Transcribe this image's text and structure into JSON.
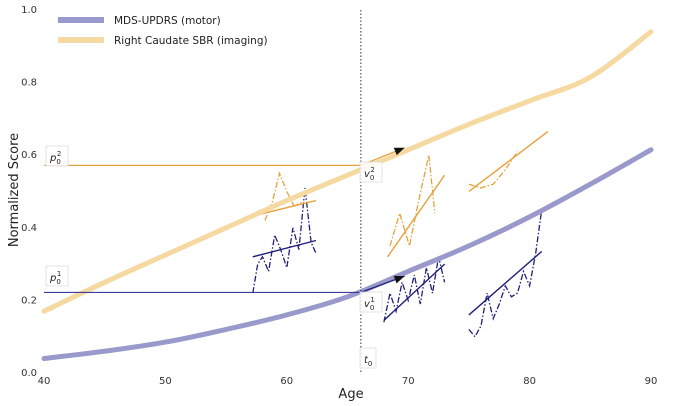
{
  "chart_data": {
    "type": "line",
    "xlabel": "Age",
    "ylabel": "Normalized Score",
    "xlim": [
      40,
      90
    ],
    "ylim": [
      0.0,
      1.0
    ],
    "xticks": [
      "40",
      "50",
      "60",
      "70",
      "80",
      "90"
    ],
    "yticks": [
      "0.0",
      "0.2",
      "0.4",
      "0.6",
      "0.8",
      "1.0"
    ],
    "grid": false,
    "legend_position": "top-left",
    "series": [
      {
        "name": "MDS-UPDRS (motor)",
        "color": "#9999cc",
        "x": [
          40,
          45,
          50,
          55,
          60,
          65,
          70,
          75,
          80,
          85,
          90
        ],
        "y": [
          0.04,
          0.06,
          0.085,
          0.12,
          0.16,
          0.21,
          0.28,
          0.35,
          0.43,
          0.52,
          0.615
        ]
      },
      {
        "name": "Right Caudate SBR (imaging)",
        "color": "#f5d9a0",
        "x": [
          40,
          45,
          50,
          55,
          60,
          65,
          70,
          75,
          80,
          85,
          90
        ],
        "y": [
          0.17,
          0.25,
          0.325,
          0.4,
          0.475,
          0.545,
          0.615,
          0.685,
          0.75,
          0.815,
          0.94
        ]
      }
    ],
    "reference_line": {
      "x": 66.1,
      "style": "dotted"
    },
    "annotations": {
      "t0": "t",
      "t0_sub": "0",
      "p01": "p",
      "p01_sub": "0",
      "p01_sup": "1",
      "p02": "p",
      "p02_sub": "0",
      "p02_sup": "2",
      "v01": "v",
      "v01_sub": "0",
      "v01_sup": "1",
      "v02": "v",
      "v02_sub": "0",
      "v02_sup": "2"
    },
    "reference_values": {
      "p01": 0.222,
      "p02": 0.572
    },
    "individual_trajectories": [
      {
        "series": "MDS-UPDRS (motor)",
        "color": "#1f1f7a",
        "x": [
          57.2,
          57.6,
          58.0,
          58.5,
          59.0,
          59.5,
          60.0,
          60.5,
          61.0,
          61.5,
          62.0,
          62.4
        ],
        "y": [
          0.22,
          0.3,
          0.32,
          0.28,
          0.38,
          0.34,
          0.29,
          0.4,
          0.34,
          0.51,
          0.36,
          0.33
        ],
        "fit": {
          "x": [
            57.2,
            62.4
          ],
          "y": [
            0.32,
            0.365
          ]
        }
      },
      {
        "series": "MDS-UPDRS (motor)",
        "color": "#1f1f7a",
        "x": [
          68.0,
          68.5,
          69.0,
          69.5,
          70.0,
          70.5,
          71.0,
          71.5,
          72.0,
          72.5,
          73.0
        ],
        "y": [
          0.14,
          0.22,
          0.17,
          0.25,
          0.2,
          0.27,
          0.19,
          0.29,
          0.22,
          0.32,
          0.25
        ],
        "fit": {
          "x": [
            68.0,
            73.0
          ],
          "y": [
            0.145,
            0.3
          ]
        }
      },
      {
        "series": "MDS-UPDRS (motor)",
        "color": "#1f1f7a",
        "x": [
          75.0,
          75.5,
          76.0,
          76.5,
          77.0,
          77.5,
          78.0,
          78.5,
          79.0,
          79.5,
          80.0,
          80.5,
          81.0
        ],
        "y": [
          0.12,
          0.1,
          0.13,
          0.22,
          0.15,
          0.19,
          0.24,
          0.21,
          0.22,
          0.28,
          0.24,
          0.33,
          0.45
        ],
        "fit": {
          "x": [
            75.0,
            81.0
          ],
          "y": [
            0.16,
            0.335
          ]
        }
      },
      {
        "series": "Right Caudate SBR (imaging)",
        "color": "#e6a23c",
        "x": [
          58.2,
          58.8,
          59.4,
          60.0,
          60.6,
          61.2
        ],
        "y": [
          0.42,
          0.47,
          0.55,
          0.5,
          0.46,
          0.47
        ],
        "fit": {
          "x": [
            57.5,
            62.4
          ],
          "y": [
            0.435,
            0.475
          ]
        }
      },
      {
        "series": "Right Caudate SBR (imaging)",
        "color": "#e6a23c",
        "x": [
          68.5,
          69.3,
          70.1,
          70.9,
          71.7,
          72.2
        ],
        "y": [
          0.35,
          0.44,
          0.35,
          0.48,
          0.6,
          0.44
        ],
        "fit": {
          "x": [
            68.3,
            73.0
          ],
          "y": [
            0.32,
            0.545
          ]
        }
      },
      {
        "series": "Right Caudate SBR (imaging)",
        "color": "#e6a23c",
        "x": [
          75.0,
          76.0,
          77.0,
          78.0,
          79.0
        ],
        "y": [
          0.52,
          0.51,
          0.52,
          0.56,
          0.61
        ],
        "fit": {
          "x": [
            75.0,
            81.5
          ],
          "y": [
            0.5,
            0.665
          ]
        }
      }
    ]
  }
}
